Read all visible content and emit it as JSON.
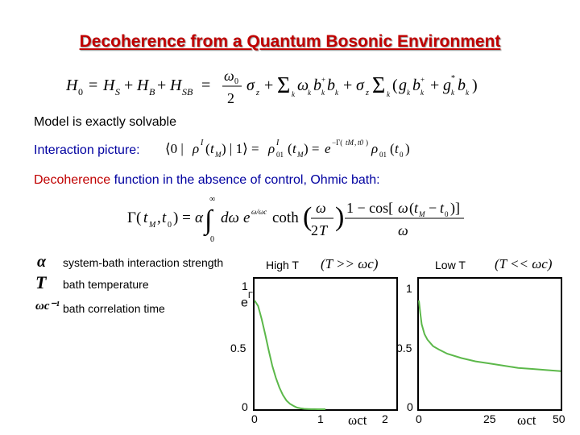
{
  "title": "Decoherence from a Quantum Bosonic Environment",
  "hamiltonian": {
    "lhs": "H",
    "lhs_sub": "0",
    "terms": "= H_S + H_B + H_SB = (ω0/2) σz + Σk ωk bk+ bk + σz Σk (gk bk+ + g*k bk)"
  },
  "solvable": "Model is exactly solvable",
  "interaction_label": "Interaction picture:",
  "interaction_eq": "⟨0|ρ^I(tM)|1⟩ = ρ^I01(tM) = e^{−Γ(tM,t0)} ρ01(t0)",
  "decoherence": {
    "highlight": "Decoherence",
    "rest": " function in the absence of control, Ohmic bath:"
  },
  "gamma_eq": "Γ(tM,t0) = α ∫0∞ dω e^{−ω/ωc} coth(ω/2T) (1 − cos[ω(tM − t0)])/ω",
  "legend": [
    {
      "symbol": "α",
      "text": "system-bath interaction strength"
    },
    {
      "symbol": "T",
      "text": "bath temperature"
    },
    {
      "symbol": "ωc⁻¹",
      "text": "bath correlation time"
    }
  ],
  "y_axis_label": "e",
  "y_axis_sup": "Γ",
  "high_t": {
    "label": "High T",
    "cond": "(T >> ωc)"
  },
  "low_t": {
    "label": "Low T",
    "cond": "(T << ωc)"
  },
  "chart_data": [
    {
      "type": "line",
      "title": "High T",
      "xlabel": "ωct",
      "ylabel": "e^-Γ",
      "xlim": [
        0,
        2
      ],
      "ylim": [
        0,
        1.2
      ],
      "xticks": [
        "0",
        "1",
        "2"
      ],
      "yticks": [
        "0",
        "0.5",
        "1"
      ],
      "series": [
        {
          "color": "#5cb84a",
          "x": [
            0,
            0.05,
            0.1,
            0.15,
            0.2,
            0.25,
            0.3,
            0.35,
            0.4,
            0.45,
            0.5,
            0.55,
            0.6,
            0.65,
            0.7,
            0.75,
            0.8,
            0.85,
            0.9,
            1.0
          ],
          "y": [
            1.0,
            0.95,
            0.83,
            0.69,
            0.54,
            0.4,
            0.29,
            0.2,
            0.13,
            0.08,
            0.05,
            0.03,
            0.015,
            0.008,
            0.004,
            0.002,
            0.001,
            0.0005,
            0.0,
            0.0
          ]
        }
      ]
    },
    {
      "type": "line",
      "title": "Low T",
      "xlabel": "ωct",
      "ylabel": "e^-Γ",
      "xlim": [
        0,
        50
      ],
      "ylim": [
        0,
        1.2
      ],
      "xticks": [
        "0",
        "25",
        "50"
      ],
      "yticks": [
        "0",
        "0.5",
        "1"
      ],
      "series": [
        {
          "color": "#5cb84a",
          "x": [
            0,
            0.5,
            1,
            2,
            3,
            5,
            7,
            10,
            15,
            20,
            25,
            30,
            35,
            40,
            45,
            50
          ],
          "y": [
            1.0,
            0.88,
            0.78,
            0.69,
            0.64,
            0.58,
            0.55,
            0.51,
            0.47,
            0.44,
            0.42,
            0.4,
            0.38,
            0.37,
            0.36,
            0.35
          ]
        }
      ]
    }
  ]
}
